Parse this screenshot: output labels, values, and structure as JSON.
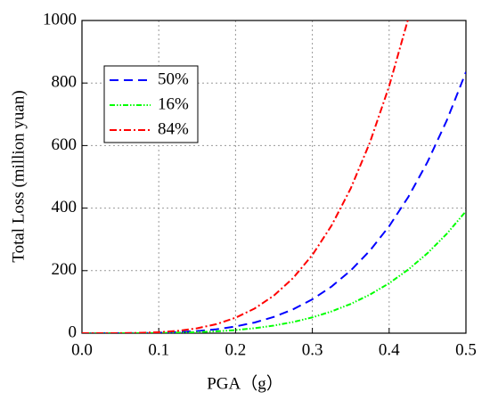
{
  "chart_data": {
    "type": "line",
    "x_label": "PGA（g）",
    "y_label": "Total Loss (million yuan)",
    "x": [
      0,
      0.025,
      0.05,
      0.075,
      0.1,
      0.125,
      0.15,
      0.175,
      0.2,
      0.225,
      0.25,
      0.275,
      0.3,
      0.325,
      0.35,
      0.375,
      0.4,
      0.425,
      0.45,
      0.475,
      0.5
    ],
    "series": [
      {
        "name": "50%",
        "color": "#0000ff",
        "dash": "10,6",
        "values": [
          0,
          0,
          0.1,
          0.4,
          1.3,
          3.3,
          6.8,
          12.5,
          21.4,
          34.2,
          52.2,
          76.4,
          108.2,
          149.1,
          200.5,
          264.2,
          342,
          435.9,
          547.8,
          680.1,
          835
        ]
      },
      {
        "name": "16%",
        "color": "#00ff00",
        "dash": "6,2,1.5,2,1.5,2",
        "values": [
          0,
          0,
          0,
          0.2,
          0.6,
          1.5,
          3.2,
          5.9,
          10,
          16,
          24.4,
          35.7,
          50.5,
          69.6,
          93.6,
          123.4,
          159.7,
          203.6,
          255.9,
          317.7,
          390
        ]
      },
      {
        "name": "84%",
        "color": "#ff0000",
        "dash": "8,3,2,3",
        "values": [
          0,
          0,
          0.2,
          1,
          3.1,
          7.5,
          15.6,
          28.9,
          49.4,
          79.1,
          120.5,
          176.5,
          250,
          344.3,
          463.1,
          610.3,
          790,
          1006.8,
          null,
          null,
          null
        ]
      }
    ],
    "xlim": [
      0,
      0.5
    ],
    "xticks": [
      {
        "value": 0,
        "label": "0.0"
      },
      0.1,
      0.2,
      0.3,
      0.4,
      0.5
    ],
    "ylim": [
      0,
      1000
    ],
    "yticks": [
      0,
      200,
      400,
      600,
      800,
      1000
    ],
    "grid": true,
    "legend": "upper left"
  }
}
